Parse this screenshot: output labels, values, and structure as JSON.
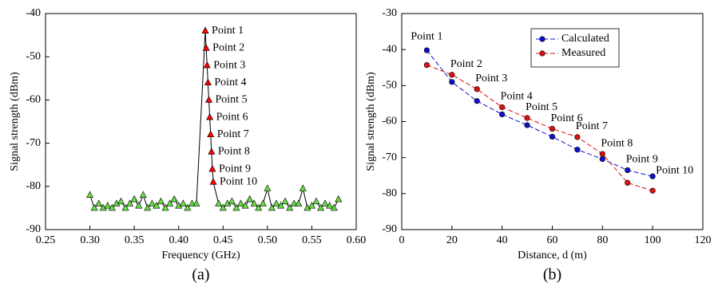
{
  "chart_data": [
    {
      "type": "line",
      "xlabel": "Frequency (GHz)",
      "ylabel": "Signal strength (dBm)",
      "caption": "(a)",
      "marker": "triangle",
      "line_color": "#000000",
      "connect_series": true,
      "xlim": [
        0.25,
        0.6
      ],
      "xticks": [
        0.25,
        {
          "value": 0.3,
          "label": "0.30"
        },
        0.35,
        {
          "value": 0.4,
          "label": "0.40"
        },
        0.45,
        {
          "value": 0.5,
          "label": "0.50"
        },
        0.55,
        {
          "value": 0.6,
          "label": "0.60"
        }
      ],
      "ylim": [
        -90,
        -40
      ],
      "yticks": [
        -90,
        -80,
        -70,
        -60,
        -50,
        -40
      ],
      "series": [
        {
          "color": "#66dd44",
          "x": [
            0.3,
            0.305,
            0.31,
            0.315,
            0.32,
            0.325,
            0.33,
            0.335,
            0.34,
            0.345,
            0.35,
            0.355,
            0.36,
            0.365,
            0.37,
            0.375,
            0.38,
            0.385,
            0.39,
            0.395,
            0.4,
            0.405,
            0.41,
            0.415,
            0.42
          ],
          "values": [
            -82,
            -85,
            -84,
            -85,
            -84.5,
            -85,
            -84,
            -83.5,
            -85,
            -84,
            -83,
            -84.5,
            -82,
            -85,
            -84,
            -84.5,
            -83.5,
            -85,
            -84,
            -83,
            -84.5,
            -84,
            -85,
            -84,
            -84
          ]
        },
        {
          "color": "#ff0000",
          "x": [
            0.43,
            0.431,
            0.432,
            0.433,
            0.434,
            0.435,
            0.436,
            0.437,
            0.438,
            0.439
          ],
          "values": [
            -44,
            -48,
            -52,
            -56,
            -60,
            -64,
            -68,
            -72,
            -76,
            -79
          ],
          "labels": [
            "Point 1",
            "Point 2",
            "Point 3",
            "Point 4",
            "Point 5",
            "Point 6",
            "Point 7",
            "Point 8",
            "Point 9",
            "Point 10"
          ]
        },
        {
          "color": "#66dd44",
          "x": [
            0.445,
            0.45,
            0.455,
            0.46,
            0.465,
            0.47,
            0.475,
            0.48,
            0.485,
            0.49,
            0.495,
            0.5,
            0.505,
            0.51,
            0.515,
            0.52,
            0.525,
            0.53,
            0.535,
            0.54,
            0.545,
            0.55,
            0.555,
            0.56,
            0.565,
            0.57,
            0.575,
            0.58
          ],
          "values": [
            -84,
            -85,
            -84,
            -83.5,
            -85,
            -84,
            -84.5,
            -83,
            -84,
            -85,
            -84,
            -80.5,
            -85,
            -84,
            -84.5,
            -83.5,
            -85,
            -84,
            -84,
            -80.5,
            -85,
            -84.5,
            -83.5,
            -85,
            -84,
            -84.5,
            -85,
            -83
          ]
        }
      ]
    },
    {
      "type": "line",
      "xlabel": "Distance, d (m)",
      "ylabel": "Signal strength (dBm)",
      "caption": "(b)",
      "marker": "circle",
      "linestyle": "dashed",
      "xlim": [
        0,
        120
      ],
      "xticks": [
        0,
        20,
        40,
        60,
        80,
        100,
        120
      ],
      "ylim": [
        -90,
        -30
      ],
      "yticks": [
        -90,
        -80,
        -70,
        -60,
        -50,
        -40,
        -30
      ],
      "x": [
        10,
        20,
        30,
        40,
        50,
        60,
        70,
        80,
        90,
        100
      ],
      "series": [
        {
          "name": "Calculated",
          "color": "#1010cc",
          "values": [
            -40.2,
            -49,
            -54.3,
            -58,
            -61,
            -64.2,
            -67.8,
            -70.4,
            -73.5,
            -75.2
          ]
        },
        {
          "name": "Measured",
          "color": "#dd1111",
          "values": [
            -44.3,
            -47,
            -51,
            -56,
            -59,
            -62,
            -64.3,
            -69,
            -77,
            -79.2
          ]
        }
      ],
      "point_labels": [
        "Point 1",
        "Point 2",
        "Point 3",
        "Point 4",
        "Point 5",
        "Point 6",
        "Point 7",
        "Point 8",
        "Point 9",
        "Point 10"
      ]
    }
  ]
}
